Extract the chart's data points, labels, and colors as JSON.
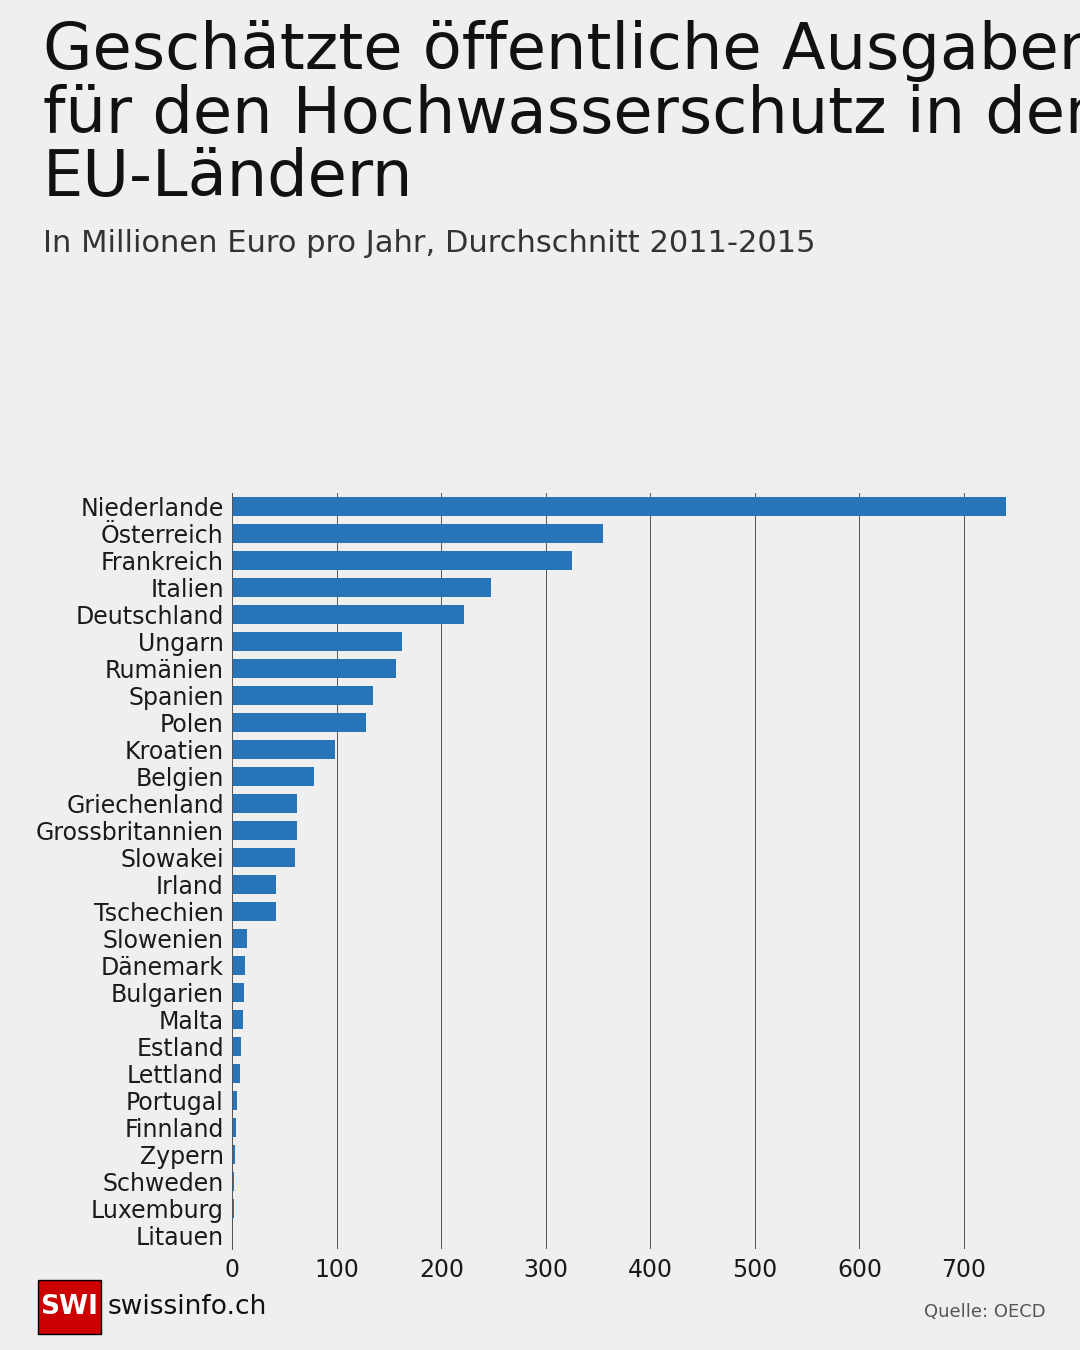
{
  "title_line1": "Geschätzte öffentliche Ausgaben",
  "title_line2": "für den Hochwasserschutz in den",
  "title_line3": "EU-Ländern",
  "subtitle": "In Millionen Euro pro Jahr, Durchschnitt 2011-2015",
  "source": "Quelle: OECD",
  "logo_bg": "#cc0000",
  "bar_color": "#2874b8",
  "bg_color": "#efefef",
  "categories": [
    "Niederlande",
    "Österreich",
    "Frankreich",
    "Italien",
    "Deutschland",
    "Ungarn",
    "Rumänien",
    "Spanien",
    "Polen",
    "Kroatien",
    "Belgien",
    "Griechenland",
    "Grossbritannien",
    "Slowakei",
    "Irland",
    "Tschechien",
    "Slowenien",
    "Dänemark",
    "Bulgarien",
    "Malta",
    "Estland",
    "Lettland",
    "Portugal",
    "Finnland",
    "Zypern",
    "Schweden",
    "Luxemburg",
    "Litauen"
  ],
  "values": [
    740,
    355,
    325,
    248,
    222,
    162,
    157,
    135,
    128,
    98,
    78,
    62,
    62,
    60,
    42,
    42,
    14,
    12,
    11,
    10,
    8,
    7,
    5,
    4,
    3,
    2,
    1.5,
    1
  ],
  "xlim": [
    0,
    780
  ],
  "xticks": [
    0,
    100,
    200,
    300,
    400,
    500,
    600,
    700
  ],
  "title_fontsize": 46,
  "subtitle_fontsize": 22,
  "label_fontsize": 17,
  "tick_fontsize": 17
}
